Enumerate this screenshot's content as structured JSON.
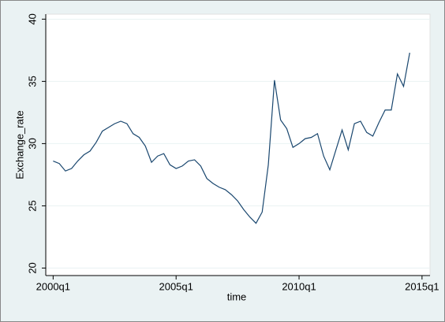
{
  "chart_data": {
    "type": "line",
    "x_label": "time",
    "y_label": "Exchange_rate",
    "x": [
      160,
      161,
      162,
      163,
      164,
      165,
      166,
      167,
      168,
      169,
      170,
      171,
      172,
      173,
      174,
      175,
      176,
      177,
      178,
      179,
      180,
      181,
      182,
      183,
      184,
      185,
      186,
      187,
      188,
      189,
      190,
      191,
      192,
      193,
      194,
      195,
      196,
      197,
      198,
      199,
      200,
      201,
      202,
      203,
      204,
      205,
      206,
      207,
      208,
      209,
      210,
      211,
      212,
      213,
      214,
      215,
      216,
      217,
      218
    ],
    "values": [
      28.6,
      28.4,
      27.8,
      28.0,
      28.6,
      29.1,
      29.4,
      30.1,
      31.0,
      31.3,
      31.6,
      31.8,
      31.6,
      30.8,
      30.5,
      29.8,
      28.5,
      29.0,
      29.2,
      28.3,
      28.0,
      28.2,
      28.6,
      28.7,
      28.2,
      27.2,
      26.8,
      26.5,
      26.3,
      25.9,
      25.4,
      24.7,
      24.1,
      23.6,
      24.5,
      28.3,
      35.1,
      31.9,
      31.2,
      29.7,
      30.0,
      30.4,
      30.5,
      30.8,
      29.0,
      27.9,
      29.5,
      31.1,
      29.5,
      31.6,
      31.8,
      30.9,
      30.6,
      31.7,
      32.7,
      32.7,
      35.6,
      34.6,
      37.3
    ],
    "color": "#1a476f",
    "xlim": [
      158.8,
      221.3
    ],
    "xticks": [
      {
        "value": 160,
        "label": "2000q1"
      },
      {
        "value": 180,
        "label": "2005q1"
      },
      {
        "value": 200,
        "label": "2010q1"
      },
      {
        "value": 220,
        "label": "2015q1"
      }
    ],
    "ylim": [
      19.4,
      40.4
    ],
    "yticks": [
      20,
      25,
      30,
      35,
      40
    ],
    "grid": true
  }
}
